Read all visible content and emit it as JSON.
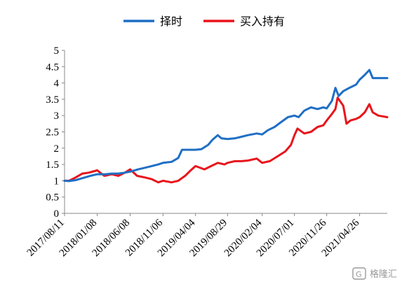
{
  "colors": {
    "timing": "#1f6fc5",
    "buyhold": "#e8141b",
    "axis": "#888888"
  },
  "watermark": "格隆汇",
  "chart_data": {
    "type": "line",
    "title": "",
    "xlabel": "",
    "ylabel": "",
    "ylim": [
      0,
      5
    ],
    "yticks": [
      "0",
      "0.5",
      "1",
      "1.5",
      "2",
      "2.5",
      "3",
      "3.5",
      "4",
      "4.5",
      "5"
    ],
    "grid": false,
    "legend_position": "top",
    "x_start": "2017/08/11",
    "x_end": "2021/08/31",
    "xticks": [
      "2017/08/11",
      "2018/01/08",
      "2018/06/08",
      "2018/11/06",
      "2019/04/04",
      "2019/08/29",
      "2020/02/04",
      "2020/07/01",
      "2020/11/26",
      "2021/04/26"
    ],
    "series": [
      {
        "name": "择时",
        "color": "#1f6fc5",
        "points": [
          [
            "2017/08/11",
            1.0
          ],
          [
            "2017/09/01",
            0.99
          ],
          [
            "2017/10/01",
            1.02
          ],
          [
            "2017/11/01",
            1.08
          ],
          [
            "2017/12/01",
            1.14
          ],
          [
            "2018/01/08",
            1.2
          ],
          [
            "2018/02/15",
            1.2
          ],
          [
            "2018/03/15",
            1.22
          ],
          [
            "2018/04/15",
            1.22
          ],
          [
            "2018/05/15",
            1.25
          ],
          [
            "2018/06/08",
            1.28
          ],
          [
            "2018/07/15",
            1.35
          ],
          [
            "2018/08/15",
            1.4
          ],
          [
            "2018/09/15",
            1.45
          ],
          [
            "2018/10/15",
            1.5
          ],
          [
            "2018/11/06",
            1.55
          ],
          [
            "2018/12/15",
            1.58
          ],
          [
            "2019/01/15",
            1.7
          ],
          [
            "2019/02/01",
            1.95
          ],
          [
            "2019/02/15",
            1.95
          ],
          [
            "2019/03/15",
            1.95
          ],
          [
            "2019/04/04",
            1.95
          ],
          [
            "2019/05/01",
            1.97
          ],
          [
            "2019/06/01",
            2.1
          ],
          [
            "2019/06/20",
            2.25
          ],
          [
            "2019/07/15",
            2.4
          ],
          [
            "2019/08/01",
            2.3
          ],
          [
            "2019/08/29",
            2.28
          ],
          [
            "2019/10/01",
            2.3
          ],
          [
            "2019/11/01",
            2.35
          ],
          [
            "2019/12/01",
            2.4
          ],
          [
            "2020/01/10",
            2.45
          ],
          [
            "2020/02/04",
            2.42
          ],
          [
            "2020/03/01",
            2.55
          ],
          [
            "2020/04/01",
            2.65
          ],
          [
            "2020/05/01",
            2.8
          ],
          [
            "2020/06/01",
            2.95
          ],
          [
            "2020/07/01",
            3.0
          ],
          [
            "2020/07/20",
            2.95
          ],
          [
            "2020/08/15",
            3.15
          ],
          [
            "2020/09/15",
            3.25
          ],
          [
            "2020/10/15",
            3.2
          ],
          [
            "2020/11/10",
            3.25
          ],
          [
            "2020/11/26",
            3.22
          ],
          [
            "2020/12/20",
            3.45
          ],
          [
            "2021/01/05",
            3.85
          ],
          [
            "2021/01/20",
            3.6
          ],
          [
            "2021/02/10",
            3.75
          ],
          [
            "2021/03/10",
            3.85
          ],
          [
            "2021/04/10",
            3.95
          ],
          [
            "2021/04/26",
            4.1
          ],
          [
            "2021/05/20",
            4.25
          ],
          [
            "2021/06/10",
            4.4
          ],
          [
            "2021/06/25",
            4.15
          ],
          [
            "2021/08/31",
            4.15
          ]
        ]
      },
      {
        "name": "买入持有",
        "color": "#e8141b",
        "points": [
          [
            "2017/08/11",
            1.0
          ],
          [
            "2017/09/01",
            1.0
          ],
          [
            "2017/10/01",
            1.1
          ],
          [
            "2017/11/01",
            1.22
          ],
          [
            "2017/12/01",
            1.25
          ],
          [
            "2018/01/08",
            1.32
          ],
          [
            "2018/02/10",
            1.15
          ],
          [
            "2018/03/15",
            1.2
          ],
          [
            "2018/04/15",
            1.15
          ],
          [
            "2018/05/15",
            1.25
          ],
          [
            "2018/06/08",
            1.35
          ],
          [
            "2018/07/10",
            1.15
          ],
          [
            "2018/08/15",
            1.1
          ],
          [
            "2018/09/15",
            1.05
          ],
          [
            "2018/10/15",
            0.95
          ],
          [
            "2018/11/06",
            1.0
          ],
          [
            "2018/12/15",
            0.95
          ],
          [
            "2019/01/15",
            1.0
          ],
          [
            "2019/02/15",
            1.15
          ],
          [
            "2019/03/10",
            1.3
          ],
          [
            "2019/04/04",
            1.45
          ],
          [
            "2019/05/15",
            1.35
          ],
          [
            "2019/06/15",
            1.45
          ],
          [
            "2019/07/15",
            1.55
          ],
          [
            "2019/08/15",
            1.5
          ],
          [
            "2019/08/29",
            1.55
          ],
          [
            "2019/10/01",
            1.6
          ],
          [
            "2019/11/01",
            1.6
          ],
          [
            "2019/12/01",
            1.62
          ],
          [
            "2020/01/10",
            1.68
          ],
          [
            "2020/02/04",
            1.55
          ],
          [
            "2020/03/10",
            1.6
          ],
          [
            "2020/04/15",
            1.75
          ],
          [
            "2020/05/20",
            1.9
          ],
          [
            "2020/06/15",
            2.1
          ],
          [
            "2020/07/01",
            2.4
          ],
          [
            "2020/07/15",
            2.6
          ],
          [
            "2020/08/15",
            2.45
          ],
          [
            "2020/09/15",
            2.5
          ],
          [
            "2020/10/15",
            2.65
          ],
          [
            "2020/11/10",
            2.7
          ],
          [
            "2020/11/26",
            2.85
          ],
          [
            "2020/12/20",
            3.05
          ],
          [
            "2021/01/05",
            3.2
          ],
          [
            "2021/01/15",
            3.55
          ],
          [
            "2021/02/10",
            3.3
          ],
          [
            "2021/02/25",
            2.75
          ],
          [
            "2021/03/15",
            2.85
          ],
          [
            "2021/04/10",
            2.9
          ],
          [
            "2021/04/26",
            2.95
          ],
          [
            "2021/05/20",
            3.1
          ],
          [
            "2021/06/10",
            3.35
          ],
          [
            "2021/06/25",
            3.1
          ],
          [
            "2021/07/20",
            3.0
          ],
          [
            "2021/08/31",
            2.95
          ]
        ]
      }
    ]
  }
}
